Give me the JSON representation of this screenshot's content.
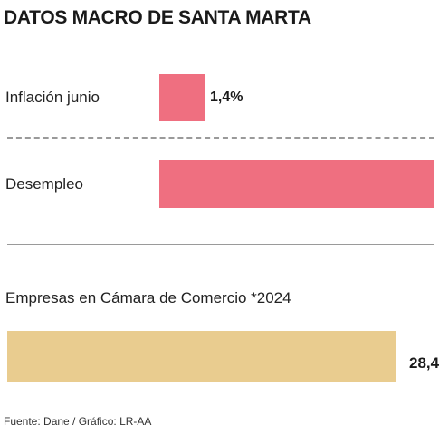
{
  "title": "DATOS MACRO DE SANTA MARTA",
  "source": "Fuente: Dane / Gráfico: LR-AA",
  "colors": {
    "pink": "#ef6f80",
    "sand": "#e9cc8f"
  },
  "chart_data": [
    {
      "type": "bar",
      "orientation": "horizontal",
      "categories": [
        "Inflación junio",
        "Desempleo"
      ],
      "values": [
        1.4,
        null
      ],
      "data_labels": [
        "1,4%",
        ""
      ],
      "unit": "%"
    },
    {
      "type": "bar",
      "orientation": "horizontal",
      "categories": [
        "Empresas en Cámara de Comercio *2024"
      ],
      "values": [
        28.4
      ],
      "data_labels": [
        "28,4"
      ]
    }
  ]
}
